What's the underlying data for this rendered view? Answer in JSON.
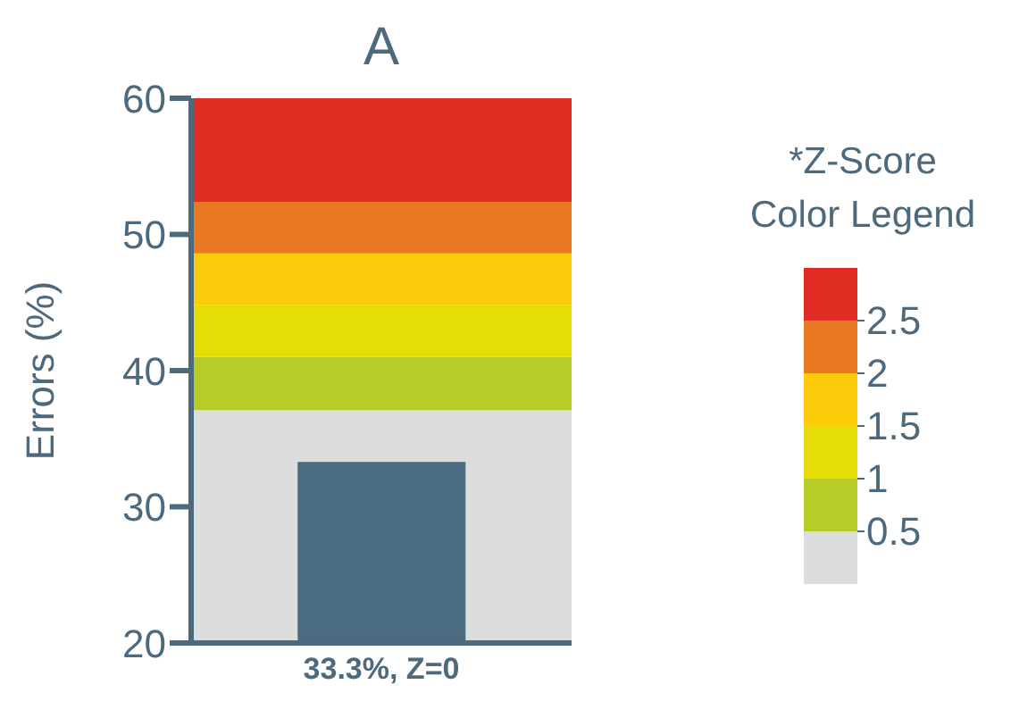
{
  "chart_data": {
    "type": "bar",
    "title": "A",
    "ylabel": "Errors (%)",
    "clabel": "*Z-Score Color Legend",
    "categories": [
      "33.3%, Z=0"
    ],
    "values": [
      33.3
    ],
    "color": "#4a6b80",
    "ylim": [
      20,
      60
    ],
    "yticks": [
      20,
      30,
      40,
      50,
      60
    ],
    "grid": false,
    "legend": false,
    "clim": [
      0,
      3
    ],
    "cticks": [
      0.5,
      1,
      1.5,
      2,
      2.5
    ],
    "bands": [
      {
        "axis": "y",
        "from": 20,
        "to": 37.1,
        "color": "#dcdddd"
      },
      {
        "axis": "y",
        "from": 37.1,
        "to": 41,
        "color": "#b8cc28"
      },
      {
        "axis": "y",
        "from": 41,
        "to": 44.8,
        "color": "#e6dd06"
      },
      {
        "axis": "y",
        "from": 44.8,
        "to": 48.6,
        "color": "#fdcb0a"
      },
      {
        "axis": "y",
        "from": 48.6,
        "to": 52.4,
        "color": "#e97822"
      },
      {
        "axis": "y",
        "from": 52.4,
        "to": 60,
        "color": "#e02c23"
      }
    ]
  }
}
